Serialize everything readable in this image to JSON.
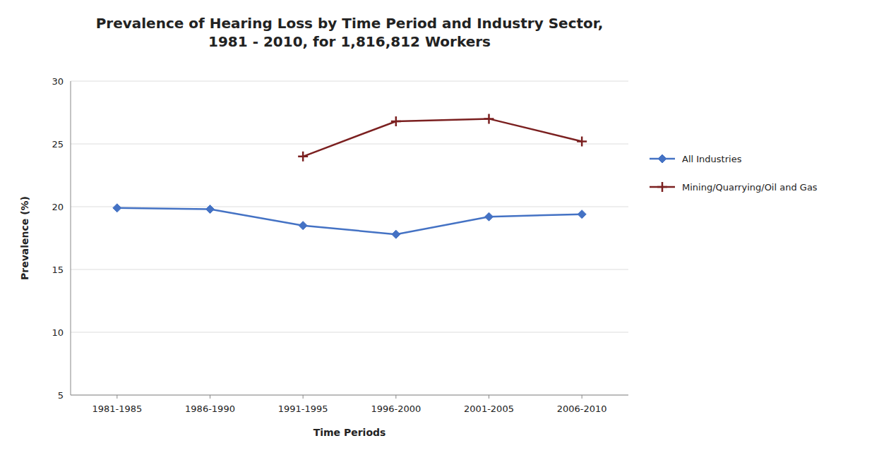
{
  "chart_data": {
    "type": "line",
    "title": "Prevalence of Hearing Loss by Time Period and Industry Sector,\n1981 - 2010, for 1,816,812 Workers",
    "x_label": "Time Periods",
    "y_label": "Prevalence (%)",
    "categories": [
      "1981-1985",
      "1986-1990",
      "1991-1995",
      "1996-2000",
      "2001-2005",
      "2006-2010"
    ],
    "series": [
      {
        "name": "All Industries",
        "color": "#4472C4",
        "marker": "diamond",
        "values": [
          19.9,
          19.8,
          18.5,
          17.8,
          19.2,
          19.4
        ]
      },
      {
        "name": "Mining/Quarrying/Oil and Gas",
        "color": "#7B2020",
        "marker": "plus",
        "values": [
          null,
          null,
          24.0,
          26.8,
          27.0,
          25.2
        ]
      }
    ],
    "ylim": [
      5,
      30
    ],
    "yticks": [
      5,
      10,
      15,
      20,
      25,
      30
    ],
    "grid": true,
    "legend": "right"
  }
}
